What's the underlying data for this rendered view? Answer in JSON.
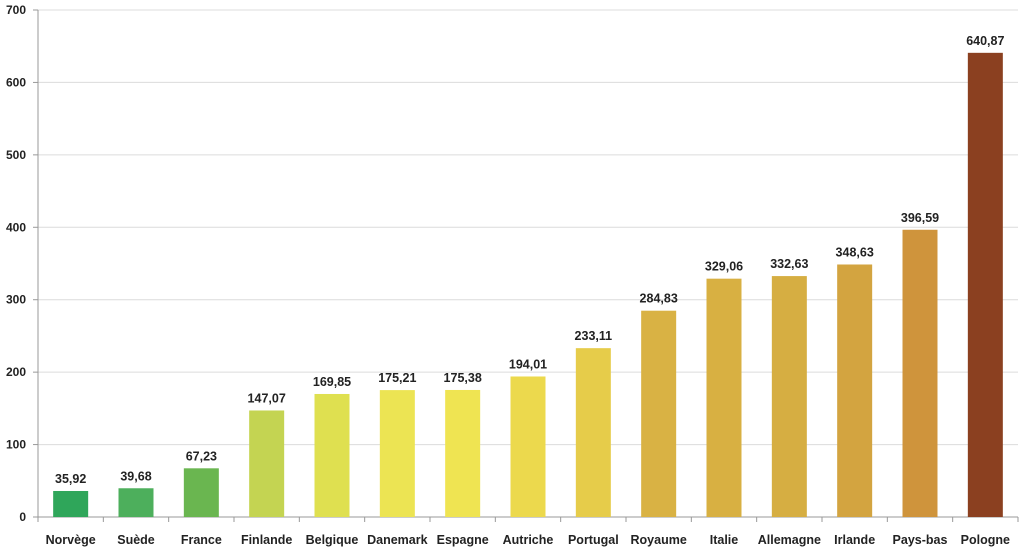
{
  "chart_data": {
    "type": "bar",
    "title": "",
    "xlabel": "",
    "ylabel": "",
    "ylim": [
      0,
      700
    ],
    "yticks": [
      0,
      100,
      200,
      300,
      400,
      500,
      600,
      700
    ],
    "grid": true,
    "legend": "none",
    "categories": [
      "Norvège",
      "Suède",
      "France",
      "Finlande",
      "Belgique",
      "Danemark",
      "Espagne",
      "Autriche",
      "Portugal",
      "Royaume",
      "Italie",
      "Allemagne",
      "Irlande",
      "Pays-bas",
      "Pologne"
    ],
    "values": [
      35.92,
      39.68,
      67.23,
      147.07,
      169.85,
      175.21,
      175.38,
      194.01,
      233.11,
      284.83,
      329.06,
      332.63,
      348.63,
      396.59,
      640.87
    ],
    "data_labels": [
      "35,92",
      "39,68",
      "67,23",
      "147,07",
      "169,85",
      "175,21",
      "175,38",
      "194,01",
      "233,11",
      "284,83",
      "329,06",
      "332,63",
      "348,63",
      "396,59",
      "640,87"
    ],
    "colors": [
      "#2fa65a",
      "#4daf5c",
      "#6ab650",
      "#c4d452",
      "#dfe050",
      "#ece453",
      "#efe452",
      "#ecd94d",
      "#e6cc4a",
      "#d9b244",
      "#d8b042",
      "#d6ae42",
      "#d3a440",
      "#cf943c",
      "#8b4020"
    ]
  }
}
